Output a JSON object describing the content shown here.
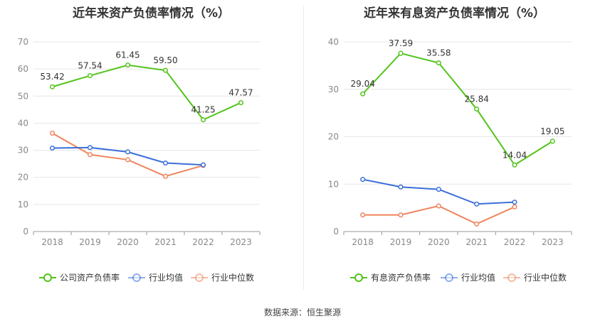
{
  "source": "数据来源：恒生聚源",
  "chart_data": [
    {
      "type": "line",
      "title": "近年来资产负债率情况（%）",
      "x": [
        "2018",
        "2019",
        "2020",
        "2021",
        "2022",
        "2023"
      ],
      "ylim": [
        0,
        70
      ],
      "yticks": [
        0,
        10,
        20,
        30,
        40,
        50,
        60,
        70
      ],
      "grid": true,
      "legend_position": "bottom",
      "series": [
        {
          "name": "公司资产负债率",
          "color": "#52c41a",
          "values": [
            53.42,
            57.54,
            61.45,
            59.5,
            41.25,
            47.57
          ],
          "labels": [
            "53.42",
            "57.54",
            "61.45",
            "59.50",
            "41.25",
            "47.57"
          ]
        },
        {
          "name": "行业均值",
          "color": "#3a6fd8",
          "values": [
            30.8,
            31.0,
            29.4,
            25.3,
            24.6,
            null
          ]
        },
        {
          "name": "行业中位数",
          "color": "#f0845c",
          "values": [
            36.3,
            28.4,
            26.5,
            20.4,
            24.4,
            null
          ]
        }
      ]
    },
    {
      "type": "line",
      "title": "近年来有息资产负债率情况（%）",
      "x": [
        "2018",
        "2019",
        "2020",
        "2021",
        "2022",
        "2023"
      ],
      "ylim": [
        0,
        40
      ],
      "yticks": [
        0,
        10,
        20,
        30,
        40
      ],
      "grid": true,
      "legend_position": "bottom",
      "series": [
        {
          "name": "有息资产负债率",
          "color": "#52c41a",
          "values": [
            29.04,
            37.59,
            35.58,
            25.84,
            14.04,
            19.05
          ],
          "labels": [
            "29.04",
            "37.59",
            "35.58",
            "25.84",
            "14.04",
            "19.05"
          ]
        },
        {
          "name": "行业均值",
          "color": "#3a6fd8",
          "values": [
            11.0,
            9.4,
            8.9,
            5.8,
            6.2,
            null
          ]
        },
        {
          "name": "行业中位数",
          "color": "#f0845c",
          "values": [
            3.5,
            3.5,
            5.4,
            1.6,
            5.2,
            null
          ]
        }
      ]
    }
  ]
}
